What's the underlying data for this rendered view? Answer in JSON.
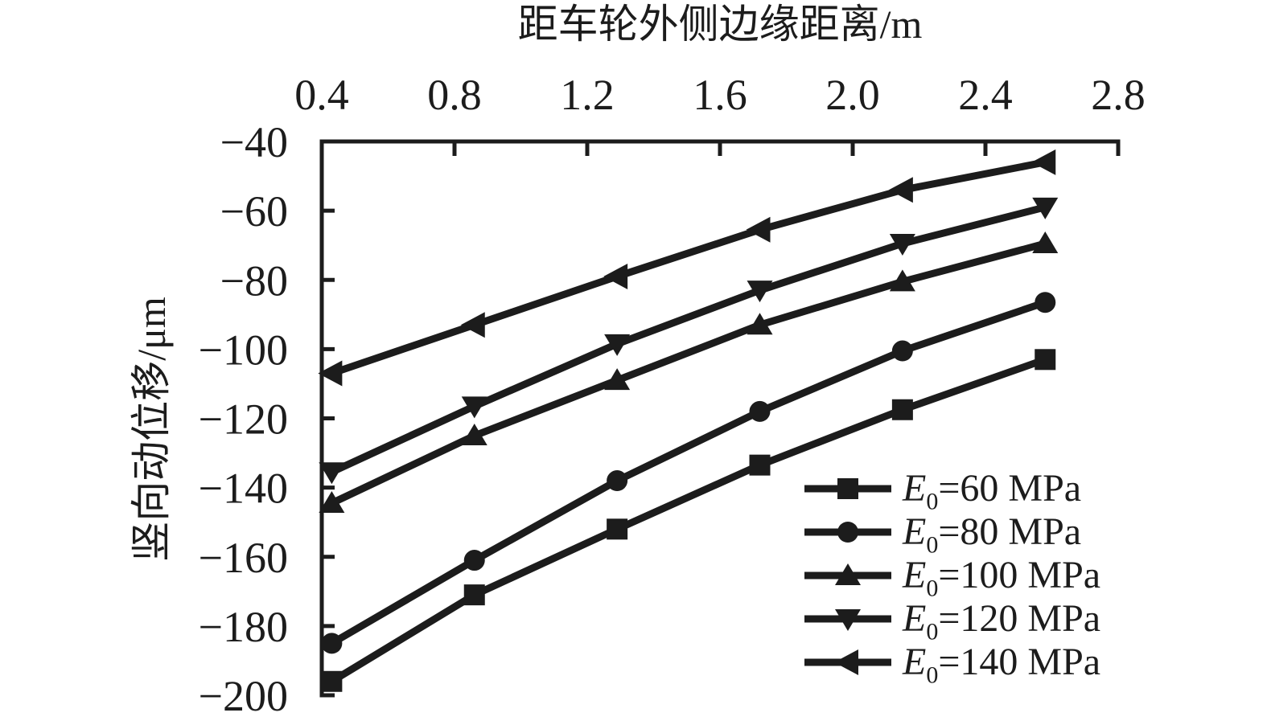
{
  "figure": {
    "background": "#ffffff",
    "ink_color": "#1c1c1c"
  },
  "chart_data": {
    "type": "line",
    "title": "",
    "xlabel": "距车轮外侧边缘距离/m",
    "ylabel": "竖向动位移/μm",
    "x_axis_side": "top",
    "y_axis_side": "left",
    "grid": false,
    "xlim": [
      0.4,
      2.8
    ],
    "ylim": [
      -200,
      -40
    ],
    "x_tick_labels": [
      "0.4",
      "0.8",
      "1.2",
      "1.6",
      "2.0",
      "2.4",
      "2.8"
    ],
    "x_tick_values": [
      0.4,
      0.8,
      1.2,
      1.6,
      2.0,
      2.4,
      2.8
    ],
    "y_tick_labels": [
      "−40",
      "−60",
      "−80",
      "−100",
      "−120",
      "−140",
      "−160",
      "−180",
      "−200"
    ],
    "y_tick_values": [
      -40,
      -60,
      -80,
      -100,
      -120,
      -140,
      -160,
      -180,
      -200
    ],
    "x": [
      0.43,
      0.86,
      1.29,
      1.72,
      2.15,
      2.58
    ],
    "series": [
      {
        "name": "E0=60 MPa",
        "marker": "square",
        "values": [
          -196,
          -171,
          -152,
          -133.5,
          -117.5,
          -103
        ]
      },
      {
        "name": "E0=80 MPa",
        "marker": "circle",
        "values": [
          -185,
          -161,
          -138,
          -118,
          -100.5,
          -86.5
        ]
      },
      {
        "name": "E0=100 MPa",
        "marker": "triangle-up",
        "values": [
          -144.5,
          -125,
          -109,
          -93,
          -80.5,
          -69.5
        ]
      },
      {
        "name": "E0=120 MPa",
        "marker": "triangle-down",
        "values": [
          -135.5,
          -116.5,
          -98.5,
          -83,
          -69.5,
          -59
        ]
      },
      {
        "name": "E0=140 MPa",
        "marker": "triangle-left",
        "values": [
          -107,
          -93,
          -79,
          -65.5,
          -54,
          -46
        ]
      }
    ],
    "legend": {
      "position": "inside-bottom-right",
      "items": [
        {
          "var": "E",
          "sub": "0",
          "rest": "=60 MPa"
        },
        {
          "var": "E",
          "sub": "0",
          "rest": "=80 MPa"
        },
        {
          "var": "E",
          "sub": "0",
          "rest": "=100 MPa"
        },
        {
          "var": "E",
          "sub": "0",
          "rest": "=120 MPa"
        },
        {
          "var": "E",
          "sub": "0",
          "rest": "=140 MPa"
        }
      ]
    }
  }
}
